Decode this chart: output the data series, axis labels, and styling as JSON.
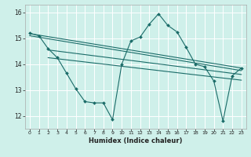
{
  "xlabel": "Humidex (Indice chaleur)",
  "xlim": [
    -0.5,
    23.5
  ],
  "ylim": [
    11.5,
    16.3
  ],
  "yticks": [
    12,
    13,
    14,
    15,
    16
  ],
  "xticks": [
    0,
    1,
    2,
    3,
    4,
    5,
    6,
    7,
    8,
    9,
    10,
    11,
    12,
    13,
    14,
    15,
    16,
    17,
    18,
    19,
    20,
    21,
    22,
    23
  ],
  "bg_color": "#cff0ea",
  "grid_color": "#b0ddd8",
  "line_color": "#1a6b68",
  "main_line_x": [
    0,
    1,
    2,
    3,
    4,
    5,
    6,
    7,
    8,
    9,
    10,
    11,
    12,
    13,
    14,
    15,
    16,
    17,
    18,
    19,
    20,
    21,
    22,
    23
  ],
  "main_line_y": [
    15.2,
    15.1,
    14.6,
    14.25,
    13.65,
    13.05,
    12.55,
    12.5,
    12.5,
    11.85,
    14.0,
    14.9,
    15.05,
    15.55,
    15.95,
    15.5,
    15.25,
    14.65,
    14.0,
    13.9,
    13.35,
    11.8,
    13.55,
    13.85
  ],
  "trend_line1": [
    [
      0,
      15.18
    ],
    [
      23,
      13.85
    ]
  ],
  "trend_line2": [
    [
      0,
      15.1
    ],
    [
      23,
      13.75
    ]
  ],
  "trend_line3": [
    [
      2,
      14.55
    ],
    [
      23,
      13.6
    ]
  ],
  "trend_line4": [
    [
      2,
      14.25
    ],
    [
      23,
      13.38
    ]
  ]
}
